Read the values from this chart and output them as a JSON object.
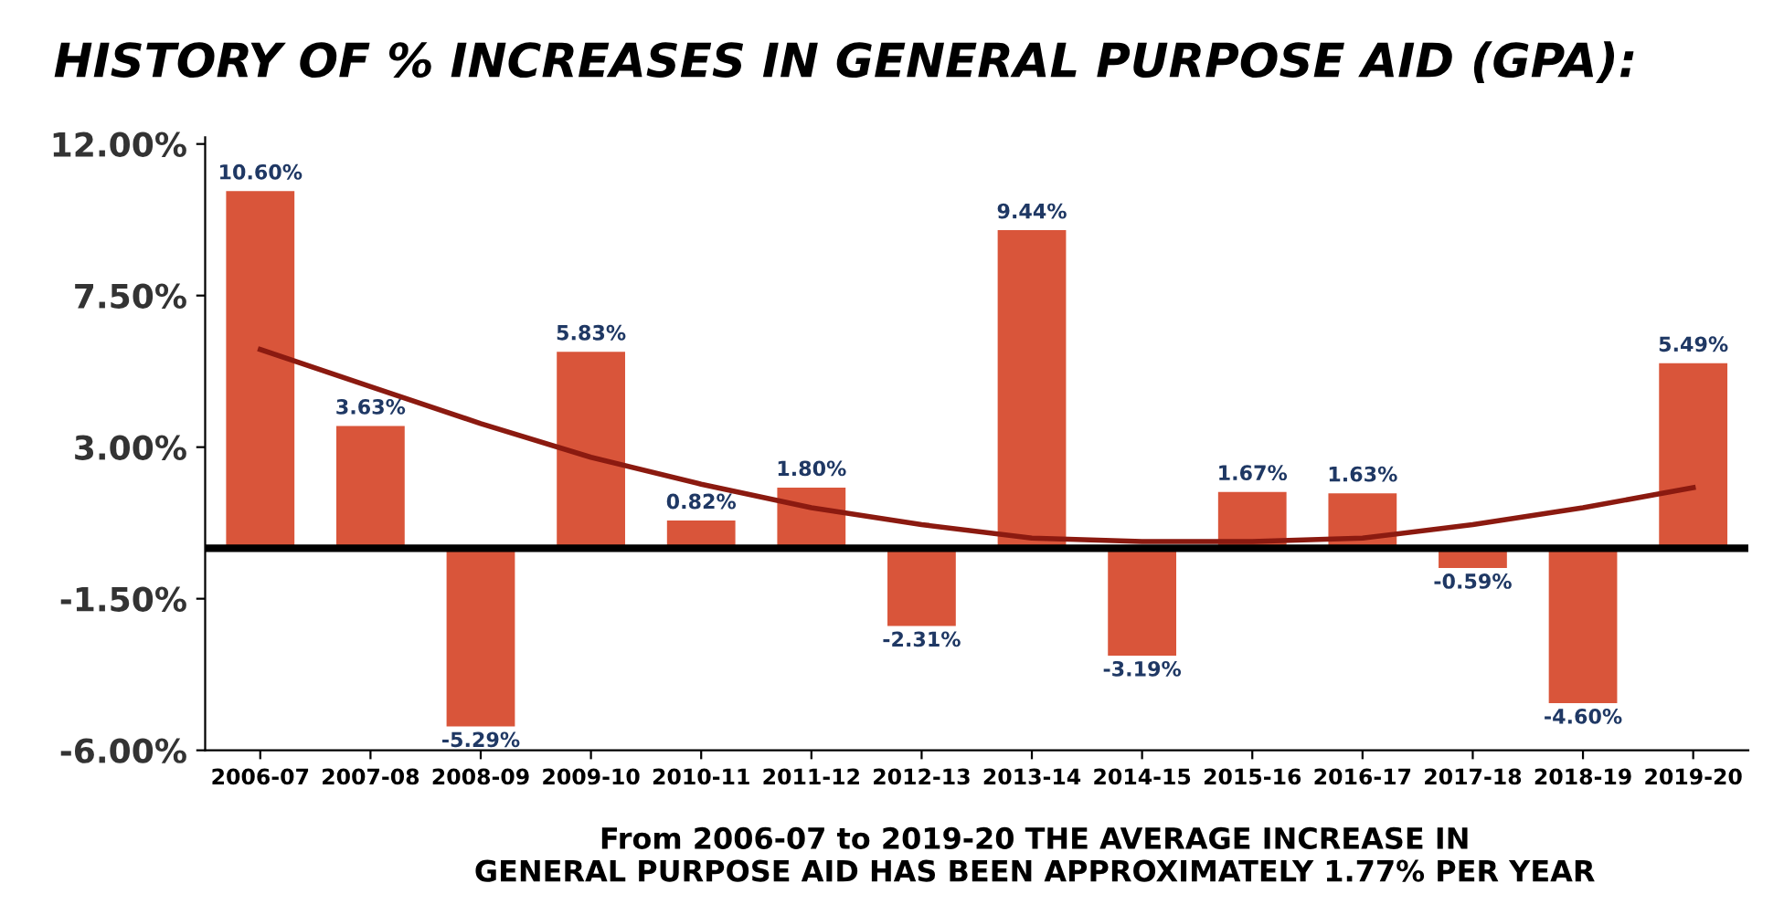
{
  "chart_data": {
    "type": "bar",
    "title": "HISTORY OF % INCREASES IN GENERAL PURPOSE AID (GPA):",
    "categories": [
      "2006-07",
      "2007-08",
      "2008-09",
      "2009-10",
      "2010-11",
      "2011-12",
      "2012-13",
      "2013-14",
      "2014-15",
      "2015-16",
      "2016-17",
      "2017-18",
      "2018-19",
      "2019-20"
    ],
    "series": [
      {
        "color": "#d9553a",
        "values": [
          10.6,
          3.63,
          -5.29,
          5.83,
          0.82,
          1.8,
          -2.31,
          9.44,
          -3.19,
          1.67,
          1.63,
          -0.59,
          -4.6,
          5.49
        ],
        "value_labels": [
          "10.60%",
          "3.63%",
          "-5.29%",
          "5.83%",
          "0.82%",
          "1.80%",
          "-2.31%",
          "9.44%",
          "-3.19%",
          "1.67%",
          "1.63%",
          "-0.59%",
          "-4.60%",
          "5.49%"
        ]
      },
      {
        "type": "line",
        "color": "#8b1a10",
        "values": [
          5.9,
          4.8,
          3.7,
          2.7,
          1.9,
          1.2,
          0.7,
          0.3,
          0.2,
          0.2,
          0.3,
          0.7,
          1.2,
          1.8
        ]
      }
    ],
    "ylim": [
      -6,
      12.2
    ],
    "yticks": [
      {
        "value": -6,
        "label": "-6.00%"
      },
      {
        "value": -1.5,
        "label": "-1.50%"
      },
      {
        "value": 3,
        "label": "3.00%"
      },
      {
        "value": 7.5,
        "label": "7.50%"
      },
      {
        "value": 12,
        "label": "12.00%"
      }
    ],
    "ref_lines": [
      {
        "axis": "y",
        "value": 0,
        "color": "#000000"
      }
    ],
    "grid": false,
    "legend": false,
    "annotations": [
      "From 2006-07 to 2019-20 THE AVERAGE INCREASE IN\nGENERAL PURPOSE AID HAS BEEN APPROXIMATELY 1.77% PER YEAR"
    ]
  }
}
